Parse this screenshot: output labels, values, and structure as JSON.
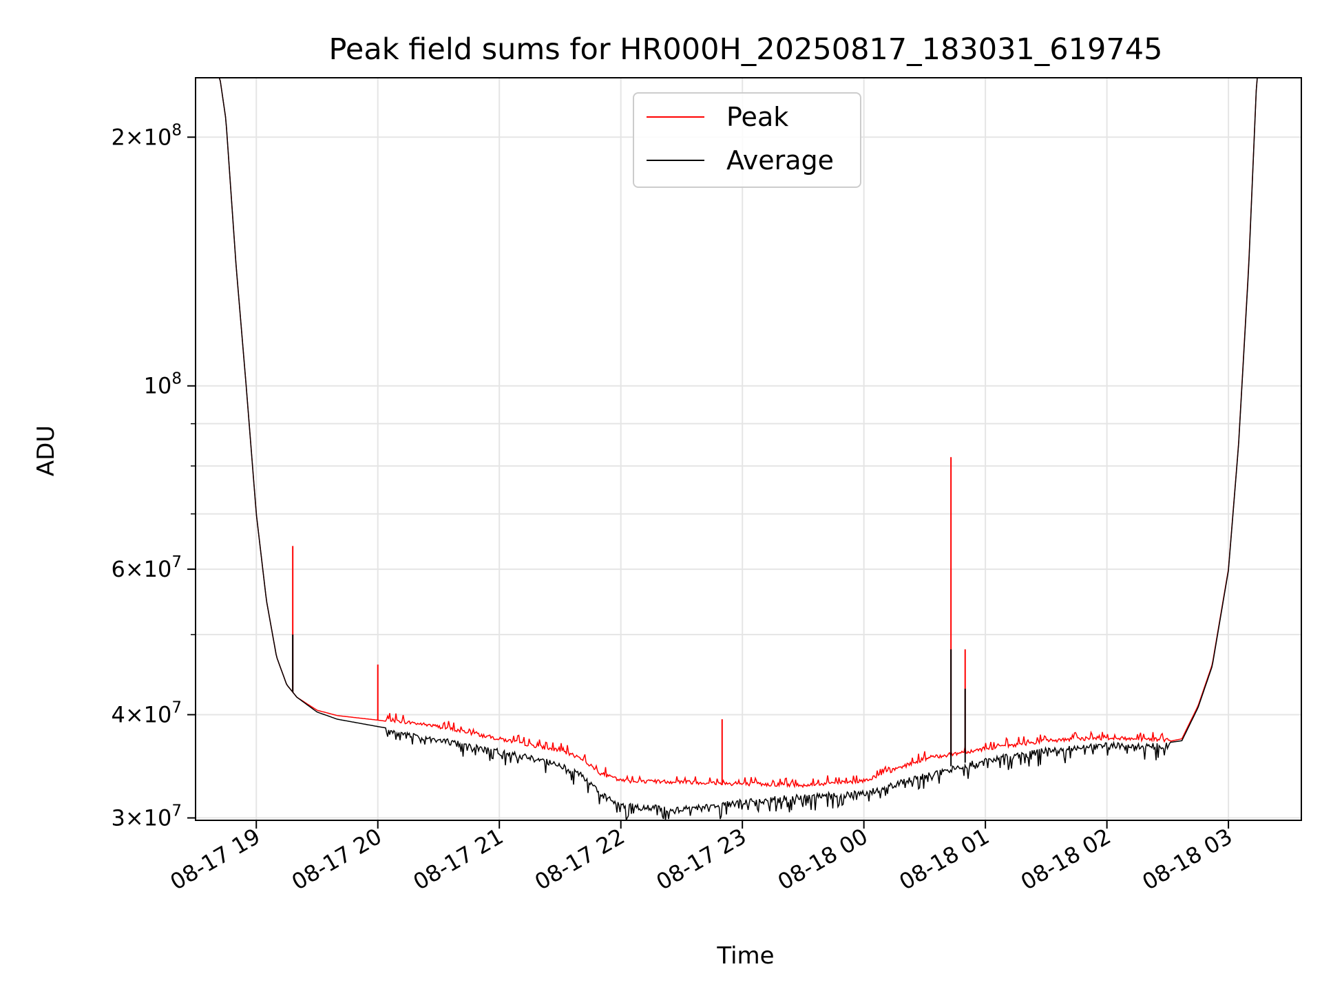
{
  "chart_data": {
    "type": "line",
    "title": "Peak field sums for HR000H_20250817_183031_619745",
    "xlabel": "Time",
    "ylabel": "ADU",
    "yscale": "log",
    "xlim": [
      "2025-08-17 18:30",
      "2025-08-18 03:36"
    ],
    "ylim": [
      29800000,
      236000000
    ],
    "grid": true,
    "legend_position": "top-center",
    "x_ticks": [
      {
        "value": "2025-08-17 19:00",
        "label": "08-17 19"
      },
      {
        "value": "2025-08-17 20:00",
        "label": "08-17 20"
      },
      {
        "value": "2025-08-17 21:00",
        "label": "08-17 21"
      },
      {
        "value": "2025-08-17 22:00",
        "label": "08-17 22"
      },
      {
        "value": "2025-08-17 23:00",
        "label": "08-17 23"
      },
      {
        "value": "2025-08-18 00:00",
        "label": "08-18 00"
      },
      {
        "value": "2025-08-18 01:00",
        "label": "08-18 01"
      },
      {
        "value": "2025-08-18 02:00",
        "label": "08-18 02"
      },
      {
        "value": "2025-08-18 03:00",
        "label": "08-18 03"
      }
    ],
    "y_ticks": [
      {
        "value": 30000000,
        "mant": "3",
        "exp": "7"
      },
      {
        "value": 40000000,
        "mant": "4",
        "exp": "7"
      },
      {
        "value": 60000000,
        "mant": "6",
        "exp": "7"
      },
      {
        "value": 100000000,
        "mant": "",
        "exp": "8"
      },
      {
        "value": 200000000,
        "mant": "2",
        "exp": "8"
      }
    ],
    "y_minor_ticks": [
      50000000,
      70000000,
      80000000,
      90000000
    ],
    "series": [
      {
        "name": "Peak",
        "color": "#ff0000",
        "x": [
          "2025-08-17 18:30",
          "2025-08-17 18:42",
          "2025-08-17 18:45",
          "2025-08-17 18:50",
          "2025-08-17 18:55",
          "2025-08-17 19:00",
          "2025-08-17 19:05",
          "2025-08-17 19:10",
          "2025-08-17 19:15",
          "2025-08-17 19:20",
          "2025-08-17 19:30",
          "2025-08-17 19:40",
          "2025-08-17 20:00",
          "2025-08-17 20:30",
          "2025-08-17 21:00",
          "2025-08-17 21:30",
          "2025-08-17 21:40",
          "2025-08-17 21:50",
          "2025-08-17 22:00",
          "2025-08-17 22:30",
          "2025-08-17 23:00",
          "2025-08-17 23:30",
          "2025-08-18 00:00",
          "2025-08-18 00:30",
          "2025-08-18 01:00",
          "2025-08-18 01:30",
          "2025-08-18 02:00",
          "2025-08-18 02:30",
          "2025-08-18 02:37",
          "2025-08-18 02:45",
          "2025-08-18 02:52",
          "2025-08-18 03:00",
          "2025-08-18 03:05",
          "2025-08-18 03:10",
          "2025-08-18 03:14",
          "2025-08-18 03:36"
        ],
        "y": [
          236000000,
          236000000,
          210000000,
          140000000,
          100000000,
          70000000,
          55000000,
          47000000,
          43500000,
          42000000,
          40500000,
          39900000,
          39400000,
          38500000,
          37200000,
          36000000,
          35300000,
          33800000,
          33100000,
          33000000,
          32800000,
          32700000,
          33100000,
          35200000,
          36200000,
          37000000,
          37300000,
          37100000,
          37400000,
          41000000,
          46000000,
          60000000,
          85000000,
          140000000,
          236000000,
          236000000
        ]
      },
      {
        "name": "Average",
        "color": "#000000",
        "x": [
          "2025-08-17 18:30",
          "2025-08-17 18:42",
          "2025-08-17 18:45",
          "2025-08-17 18:50",
          "2025-08-17 18:55",
          "2025-08-17 19:00",
          "2025-08-17 19:05",
          "2025-08-17 19:10",
          "2025-08-17 19:15",
          "2025-08-17 19:20",
          "2025-08-17 19:30",
          "2025-08-17 19:40",
          "2025-08-17 20:00",
          "2025-08-17 20:30",
          "2025-08-17 21:00",
          "2025-08-17 21:30",
          "2025-08-17 21:40",
          "2025-08-17 21:50",
          "2025-08-17 22:00",
          "2025-08-17 22:30",
          "2025-08-17 23:00",
          "2025-08-17 23:30",
          "2025-08-18 00:00",
          "2025-08-18 00:30",
          "2025-08-18 01:00",
          "2025-08-18 01:30",
          "2025-08-18 02:00",
          "2025-08-18 02:30",
          "2025-08-18 02:37",
          "2025-08-18 02:45",
          "2025-08-18 02:52",
          "2025-08-18 03:00",
          "2025-08-18 03:05",
          "2025-08-18 03:10",
          "2025-08-18 03:14",
          "2025-08-18 03:36"
        ],
        "y": [
          236000000,
          236000000,
          210000000,
          140000000,
          100000000,
          70000000,
          55000000,
          47000000,
          43500000,
          42000000,
          40300000,
          39500000,
          38700000,
          37600000,
          36400000,
          35100000,
          34300000,
          32300000,
          31300000,
          31000000,
          31600000,
          32100000,
          32400000,
          34000000,
          35500000,
          36500000,
          37000000,
          37000000,
          37200000,
          40800000,
          45800000,
          59800000,
          84800000,
          139000000,
          236000000,
          236000000
        ]
      }
    ],
    "annotations": [
      {
        "series": "Peak",
        "x": "2025-08-17 19:18",
        "y": 64000000
      },
      {
        "series": "Average",
        "x": "2025-08-17 19:18",
        "y": 50000000
      },
      {
        "series": "Peak",
        "x": "2025-08-17 20:00",
        "y": 46000000
      },
      {
        "series": "Peak",
        "x": "2025-08-17 22:50",
        "y": 39500000
      },
      {
        "series": "Peak",
        "x": "2025-08-18 00:43",
        "y": 82000000
      },
      {
        "series": "Average",
        "x": "2025-08-18 00:43",
        "y": 48000000
      },
      {
        "series": "Peak",
        "x": "2025-08-18 00:50",
        "y": 48000000
      },
      {
        "series": "Average",
        "x": "2025-08-18 00:50",
        "y": 43000000
      }
    ]
  }
}
